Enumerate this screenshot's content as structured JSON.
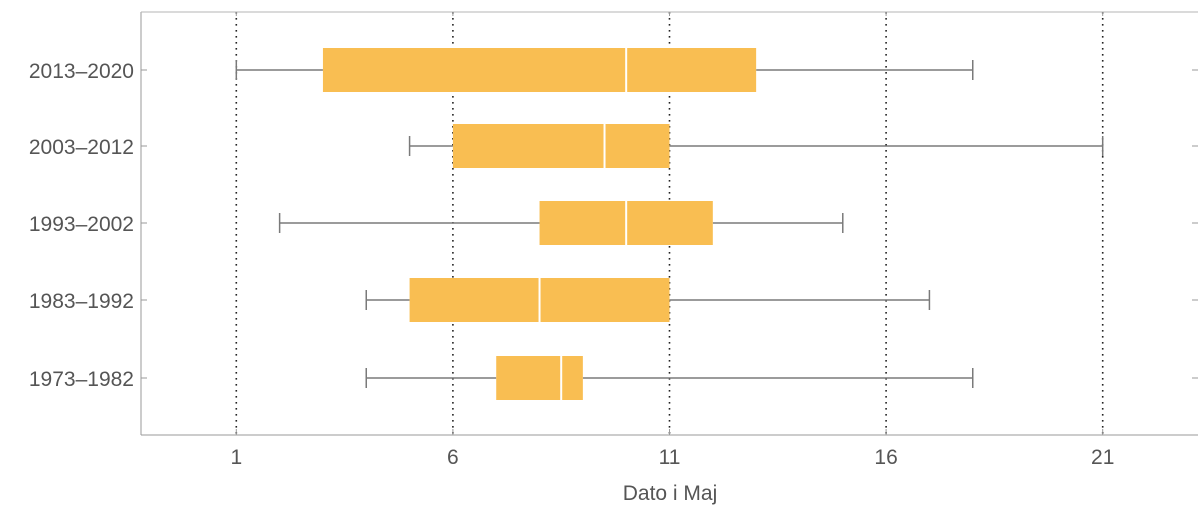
{
  "chart_data": {
    "type": "box",
    "title": "",
    "xlabel": "Dato i Maj",
    "ylabel": "",
    "xlim": [
      -1.2,
      23.2
    ],
    "x_ticks": [
      "1",
      "6",
      "11",
      "16",
      "21"
    ],
    "x_tick_values": [
      1,
      6,
      11,
      16,
      21
    ],
    "grid": "vertical dotted lines at x ticks",
    "box_color": "#F9BE52",
    "median_color": "#ffffff",
    "whisker_color": "#7a7a7a",
    "axis_color": "#9a9a9a",
    "categories": [
      "2013–2020",
      "2003–2012",
      "1993–2002",
      "1983–1992",
      "1973–1982"
    ],
    "boxes": [
      {
        "label": "2013–2020",
        "min": 1,
        "q1": 3,
        "median": 10,
        "q3": 13,
        "max": 18
      },
      {
        "label": "2003–2012",
        "min": 5,
        "q1": 6,
        "median": 9.5,
        "q3": 11,
        "max": 21
      },
      {
        "label": "1993–2002",
        "min": 2,
        "q1": 8,
        "median": 10,
        "q3": 12,
        "max": 15
      },
      {
        "label": "1983–1992",
        "min": 4,
        "q1": 5,
        "median": 8,
        "q3": 11,
        "max": 17
      },
      {
        "label": "1973–1982",
        "min": 4,
        "q1": 7,
        "median": 8.5,
        "q3": 9,
        "max": 18
      }
    ]
  }
}
